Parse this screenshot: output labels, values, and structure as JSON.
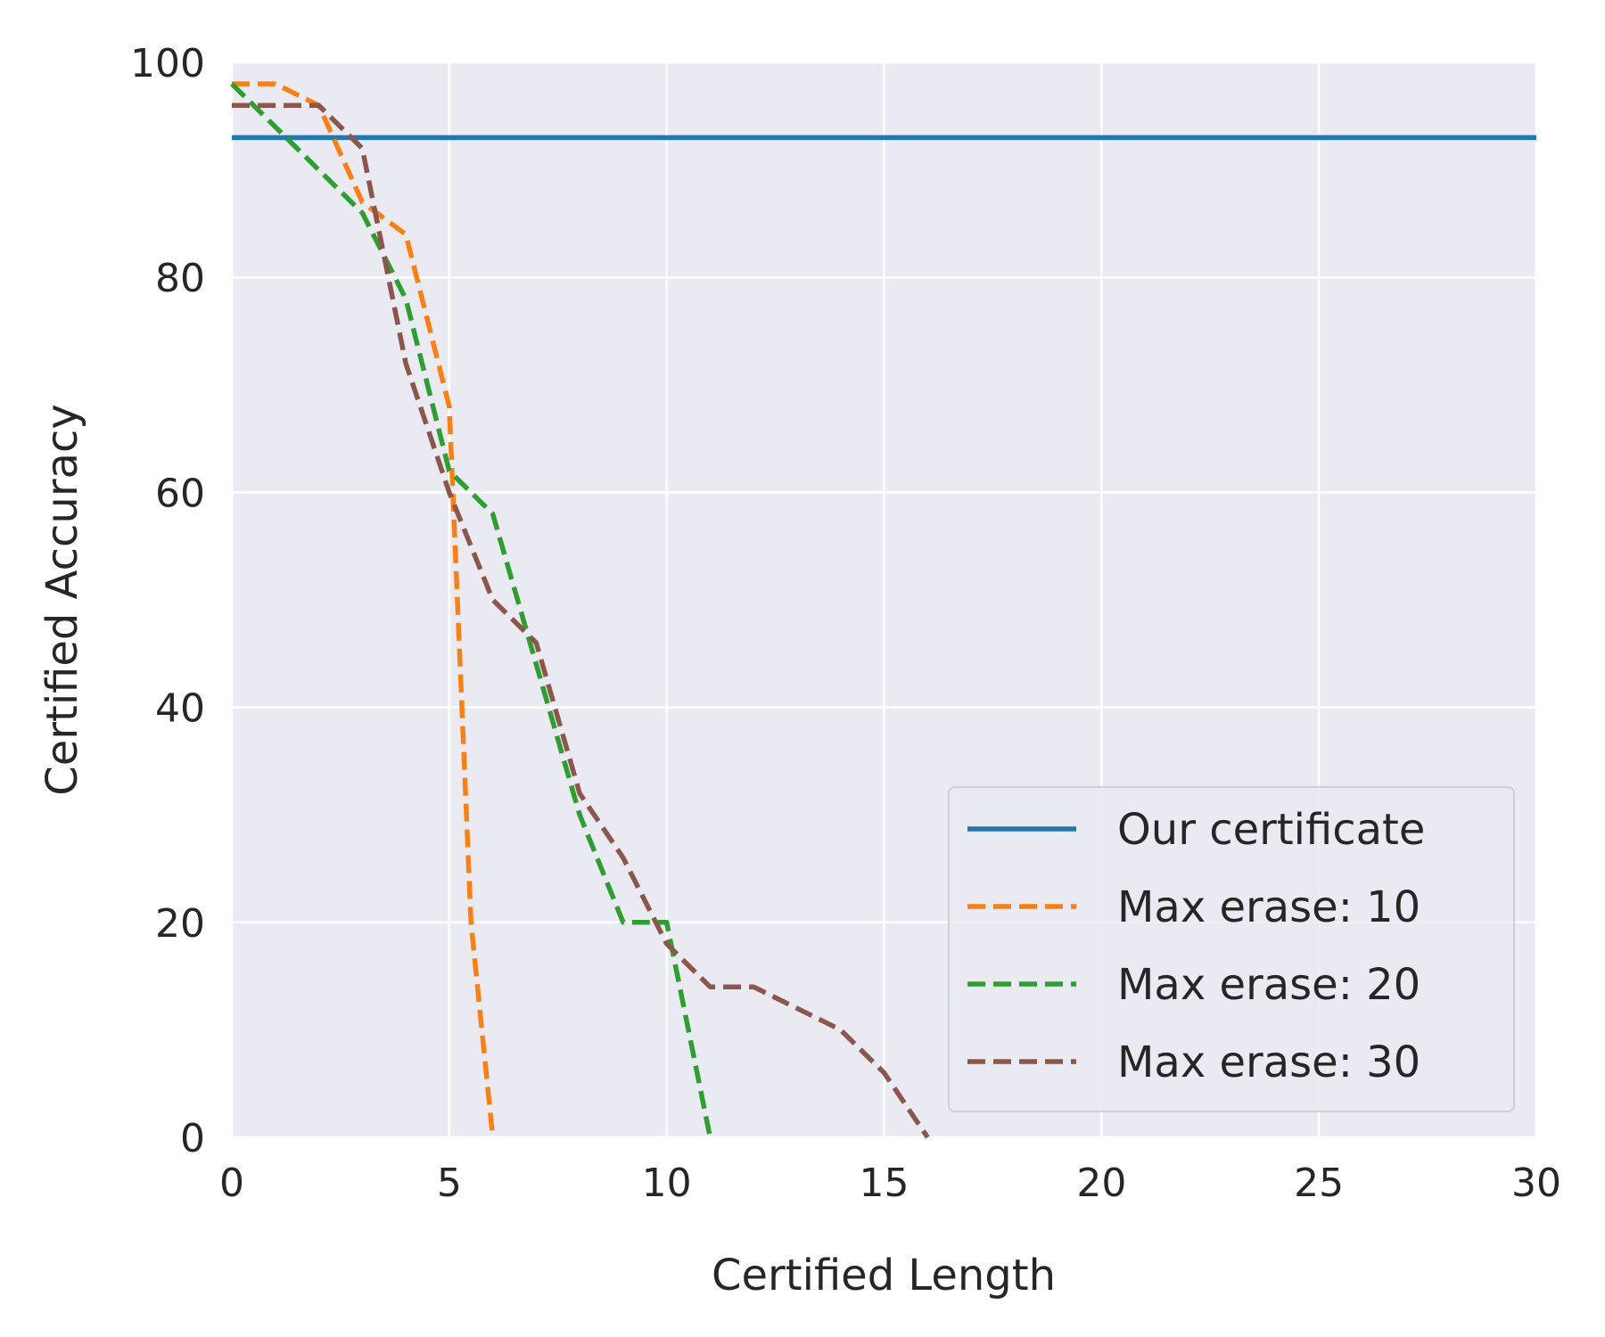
{
  "chart_data": {
    "type": "line",
    "title": "",
    "xlabel": "Certified Length",
    "ylabel": "Certified Accuracy",
    "xlim": [
      0,
      30
    ],
    "ylim": [
      0,
      100
    ],
    "xticks": [
      0,
      5,
      10,
      15,
      20,
      25,
      30
    ],
    "yticks": [
      0,
      20,
      40,
      60,
      80,
      100
    ],
    "grid": true,
    "legend_position": "lower-right",
    "background": "#eaeaf2",
    "series": [
      {
        "name": "Our certificate",
        "color": "#1f77b4",
        "style": "solid",
        "x": [
          0,
          30
        ],
        "y": [
          93,
          93
        ]
      },
      {
        "name": "Max erase: 10",
        "color": "#ff7f0e",
        "style": "dashed",
        "x": [
          0,
          1,
          2,
          3,
          4,
          5,
          5.5,
          6
        ],
        "y": [
          98,
          98,
          96,
          87,
          84,
          68,
          20,
          0
        ]
      },
      {
        "name": "Max erase: 20",
        "color": "#2ca02c",
        "style": "dashed",
        "x": [
          0,
          1,
          2,
          3,
          4,
          5,
          6,
          7,
          8,
          9,
          10,
          11
        ],
        "y": [
          98,
          94,
          90,
          86,
          78,
          62,
          58,
          44,
          30,
          20,
          20,
          0
        ]
      },
      {
        "name": "Max erase: 30",
        "color": "#8c564b",
        "style": "dashed",
        "x": [
          0,
          1,
          2,
          3,
          4,
          5,
          6,
          7,
          8,
          9,
          10,
          11,
          12,
          13,
          14,
          15,
          16
        ],
        "y": [
          96,
          96,
          96,
          92,
          72,
          60,
          50,
          46,
          32,
          26,
          18,
          14,
          14,
          12,
          10,
          6,
          0
        ]
      }
    ]
  }
}
